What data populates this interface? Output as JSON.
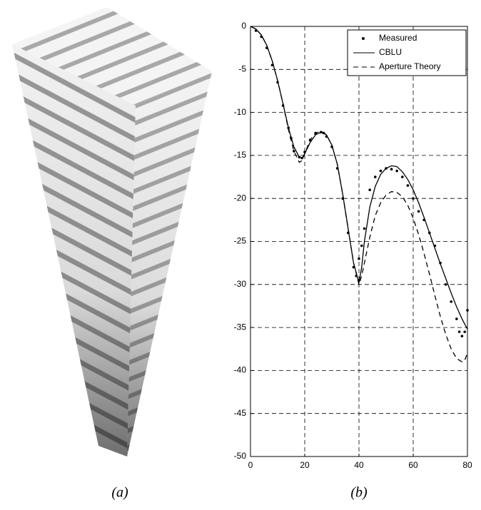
{
  "figure": {
    "captions": [
      "(a)",
      "(b)"
    ]
  },
  "chart_data": {
    "type": "line",
    "xlim": [
      0,
      80
    ],
    "xticks": [
      0,
      20,
      40,
      60,
      80
    ],
    "ylim": [
      -50,
      0
    ],
    "yticks": [
      0,
      -5,
      -10,
      -15,
      -20,
      -25,
      -30,
      -35,
      -40,
      -45,
      -50
    ],
    "grid": true,
    "legend": "top-right",
    "series": [
      {
        "name": "Measured",
        "color": "#000000",
        "style": "dots",
        "x": [
          2,
          4,
          6,
          8,
          10,
          12,
          14,
          15,
          16,
          18,
          19,
          20,
          22,
          24,
          26,
          27,
          28,
          30,
          32,
          34,
          36,
          38,
          39,
          40,
          41,
          42,
          44,
          46,
          48,
          50,
          52,
          54,
          56,
          58,
          60,
          62,
          64,
          66,
          68,
          70,
          72,
          74,
          76,
          77,
          78,
          79,
          80
        ],
        "values": [
          -0.5,
          -1.2,
          -2.5,
          -4.5,
          -6.5,
          -9.2,
          -11.8,
          -13,
          -14.5,
          -15.2,
          -15.3,
          -14.6,
          -13.2,
          -12.4,
          -12.3,
          -12.4,
          -12.8,
          -14,
          -16.5,
          -20,
          -24,
          -28,
          -29,
          -27,
          -25.5,
          -23.5,
          -19,
          -17.5,
          -16.8,
          -16.5,
          -16.6,
          -16.8,
          -17.5,
          -18.5,
          -20,
          -21.5,
          -22.5,
          -24,
          -25.5,
          -27.5,
          -30,
          -32,
          -34,
          -35.5,
          -36,
          -35.5,
          -33
        ]
      },
      {
        "name": "CBLU",
        "color": "#000000",
        "style": "solid",
        "x": [
          0,
          2,
          4,
          6,
          8,
          10,
          12,
          14,
          16,
          18,
          19,
          20,
          22,
          24,
          26,
          28,
          30,
          32,
          34,
          36,
          38,
          40,
          41,
          42,
          44,
          46,
          48,
          50,
          52,
          54,
          56,
          58,
          60,
          62,
          64,
          66,
          68,
          70,
          72,
          74,
          76,
          78,
          80
        ],
        "values": [
          0,
          -0.3,
          -1,
          -2.2,
          -4,
          -6.3,
          -9,
          -11.8,
          -14,
          -15.2,
          -15.3,
          -14.8,
          -13.5,
          -12.6,
          -12.3,
          -12.6,
          -13.8,
          -16,
          -19.5,
          -23.5,
          -27.5,
          -29.8,
          -28,
          -25,
          -21,
          -18.6,
          -17.2,
          -16.5,
          -16.2,
          -16.3,
          -16.9,
          -17.8,
          -19,
          -20.5,
          -22.2,
          -24,
          -25.8,
          -27.6,
          -29.3,
          -31,
          -32.6,
          -34,
          -35.2
        ]
      },
      {
        "name": "Aperture Theory",
        "color": "#000000",
        "style": "dashed",
        "x": [
          0,
          2,
          4,
          6,
          8,
          10,
          12,
          14,
          16,
          18,
          19,
          20,
          22,
          24,
          26,
          28,
          30,
          32,
          34,
          36,
          38,
          40,
          41,
          42,
          44,
          46,
          48,
          50,
          52,
          54,
          56,
          58,
          60,
          62,
          64,
          66,
          68,
          70,
          72,
          74,
          76,
          78,
          79,
          80
        ],
        "values": [
          0,
          -0.3,
          -1,
          -2.2,
          -4,
          -6.3,
          -9,
          -12,
          -14.5,
          -15.8,
          -15.6,
          -14.8,
          -13.2,
          -12.4,
          -12.2,
          -12.6,
          -13.8,
          -16,
          -19.5,
          -23.5,
          -27.5,
          -30,
          -29,
          -27.5,
          -24.5,
          -22,
          -20.5,
          -19.6,
          -19.2,
          -19.3,
          -19.8,
          -20.8,
          -22.3,
          -24.2,
          -26.4,
          -28.8,
          -31.3,
          -33.7,
          -35.8,
          -37.5,
          -38.6,
          -39,
          -38.8,
          -38
        ]
      }
    ]
  }
}
